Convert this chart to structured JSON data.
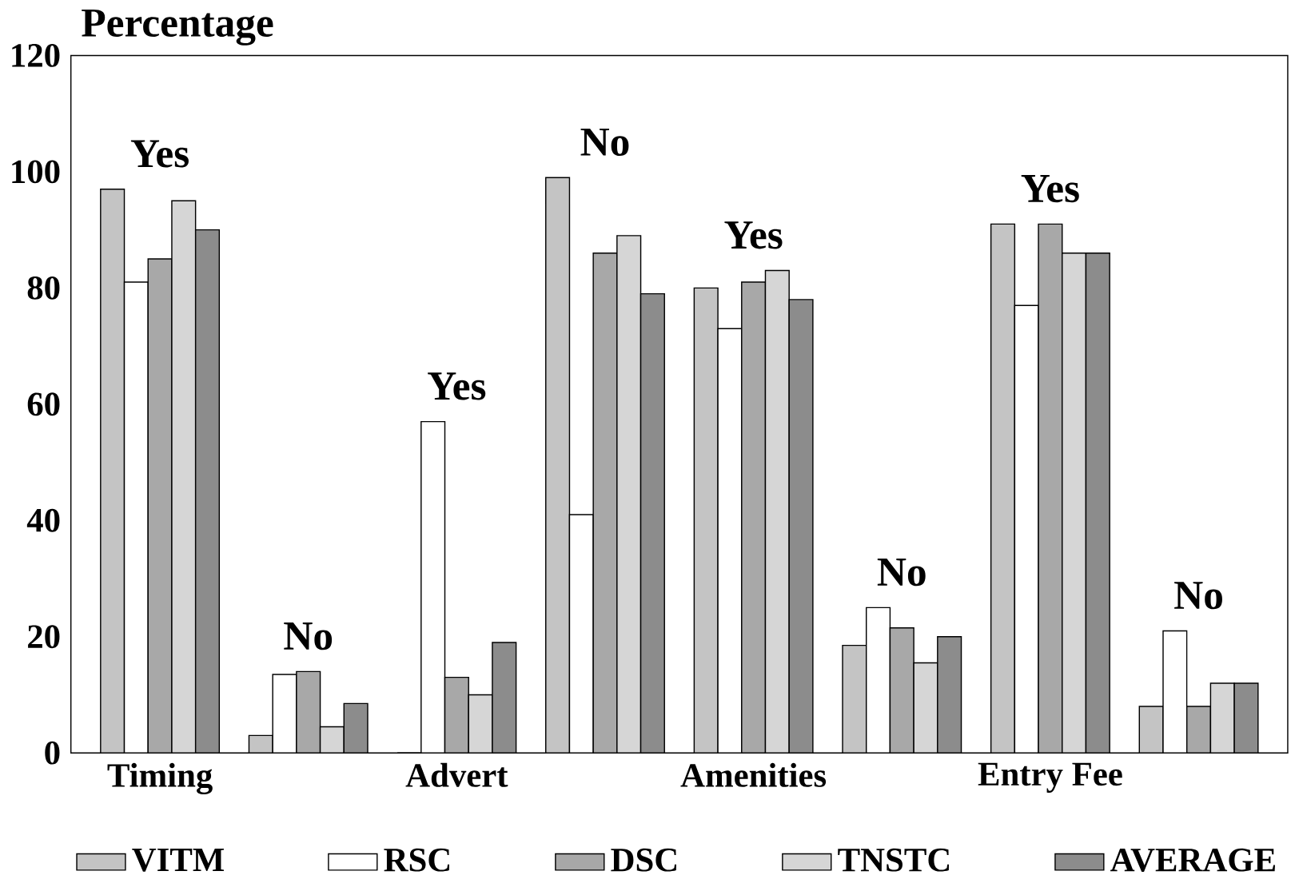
{
  "chart_data": {
    "type": "bar",
    "ylabel": "Percentage",
    "categories": [
      "Timing",
      null,
      "Advert",
      null,
      "Amenities",
      null,
      "Entry Fee",
      null
    ],
    "series": [
      {
        "name": "VITM",
        "color": "#c4c4c4",
        "values": [
          97,
          3,
          0,
          99,
          80,
          18.5,
          91,
          8
        ]
      },
      {
        "name": "RSC",
        "color": "#ffffff",
        "values": [
          81,
          13.5,
          57,
          41,
          73,
          25,
          77,
          21
        ]
      },
      {
        "name": "DSC",
        "color": "#a8a8a8",
        "values": [
          85,
          14,
          13,
          86,
          81,
          21.5,
          91,
          8
        ]
      },
      {
        "name": "TNSTC",
        "color": "#d6d6d6",
        "values": [
          95,
          4.5,
          10,
          89,
          83,
          15.5,
          86,
          12
        ]
      },
      {
        "name": "AVERAGE",
        "color": "#8c8c8c",
        "values": [
          90,
          8.5,
          19,
          79,
          78,
          20,
          86,
          12
        ]
      }
    ],
    "annotations": [
      "Yes",
      "No",
      "Yes",
      "No",
      "Yes",
      "No",
      "Yes",
      "No"
    ],
    "ylim": [
      0,
      120
    ],
    "yticks": [
      0,
      20,
      40,
      60,
      80,
      100,
      120
    ],
    "grid": false,
    "legend": "bottom"
  }
}
